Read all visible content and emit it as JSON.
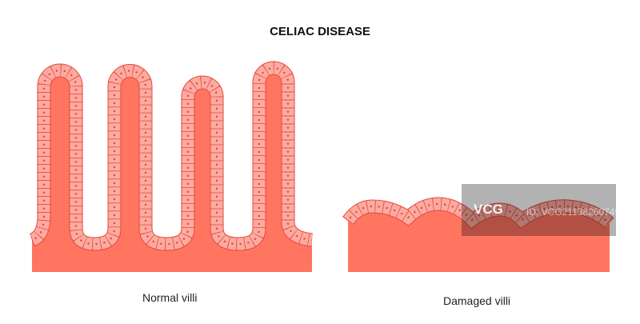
{
  "title": "CELIAC DISEASE",
  "labels": {
    "normal": "Normal villi",
    "damaged": "Damaged villi"
  },
  "watermark": {
    "logo": "VCG",
    "id": "ID: VCG211382607491"
  },
  "colors": {
    "core": "#ff7560",
    "cell": "#fcaba1",
    "cell_border": "#e5473a"
  }
}
